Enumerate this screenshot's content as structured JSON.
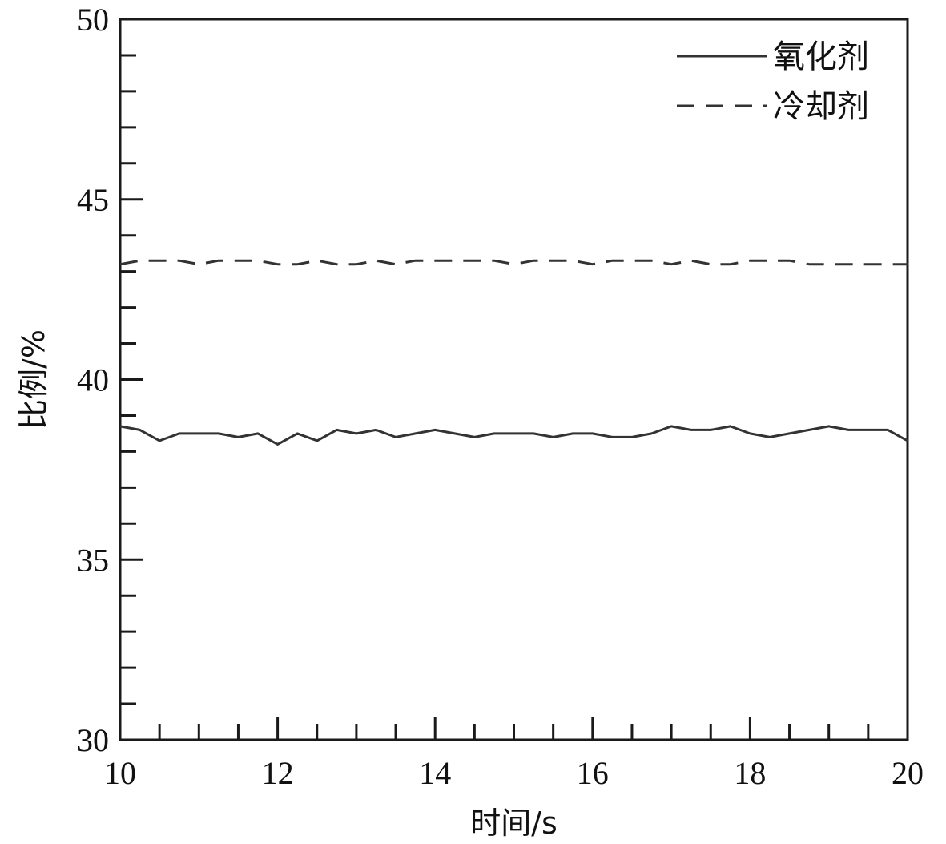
{
  "chart_data": {
    "type": "line",
    "title": "",
    "xlabel": "时间/s",
    "ylabel": "比例/%",
    "xlim": [
      10,
      20
    ],
    "ylim": [
      30,
      50
    ],
    "x_ticks": [
      10,
      12,
      14,
      16,
      18,
      20
    ],
    "y_ticks": [
      30,
      35,
      40,
      45,
      50
    ],
    "grid": false,
    "legend_position": "top-right",
    "series": [
      {
        "name": "氧化剂",
        "line_style": "solid",
        "color": "#333333",
        "x": [
          10.0,
          10.25,
          10.5,
          10.75,
          11.0,
          11.25,
          11.5,
          11.75,
          12.0,
          12.25,
          12.5,
          12.75,
          13.0,
          13.25,
          13.5,
          13.75,
          14.0,
          14.25,
          14.5,
          14.75,
          15.0,
          15.25,
          15.5,
          15.75,
          16.0,
          16.25,
          16.5,
          16.75,
          17.0,
          17.25,
          17.5,
          17.75,
          18.0,
          18.25,
          18.5,
          18.75,
          19.0,
          19.25,
          19.5,
          19.75,
          20.0
        ],
        "y": [
          38.7,
          38.6,
          38.3,
          38.5,
          38.5,
          38.5,
          38.4,
          38.5,
          38.2,
          38.5,
          38.3,
          38.6,
          38.5,
          38.6,
          38.4,
          38.5,
          38.6,
          38.5,
          38.4,
          38.5,
          38.5,
          38.5,
          38.4,
          38.5,
          38.5,
          38.4,
          38.4,
          38.5,
          38.7,
          38.6,
          38.6,
          38.7,
          38.5,
          38.4,
          38.5,
          38.6,
          38.7,
          38.6,
          38.6,
          38.6,
          38.3
        ]
      },
      {
        "name": "冷却剂",
        "line_style": "dashed",
        "color": "#333333",
        "x": [
          10.0,
          10.25,
          10.5,
          10.75,
          11.0,
          11.25,
          11.5,
          11.75,
          12.0,
          12.25,
          12.5,
          12.75,
          13.0,
          13.25,
          13.5,
          13.75,
          14.0,
          14.25,
          14.5,
          14.75,
          15.0,
          15.25,
          15.5,
          15.75,
          16.0,
          16.25,
          16.5,
          16.75,
          17.0,
          17.25,
          17.5,
          17.75,
          18.0,
          18.25,
          18.5,
          18.75,
          19.0,
          19.25,
          19.5,
          19.75,
          20.0
        ],
        "y": [
          43.2,
          43.3,
          43.3,
          43.3,
          43.2,
          43.3,
          43.3,
          43.3,
          43.2,
          43.2,
          43.3,
          43.2,
          43.2,
          43.3,
          43.2,
          43.3,
          43.3,
          43.3,
          43.3,
          43.3,
          43.2,
          43.3,
          43.3,
          43.3,
          43.2,
          43.3,
          43.3,
          43.3,
          43.2,
          43.3,
          43.2,
          43.2,
          43.3,
          43.3,
          43.3,
          43.2,
          43.2,
          43.2,
          43.2,
          43.2,
          43.2
        ]
      }
    ]
  }
}
